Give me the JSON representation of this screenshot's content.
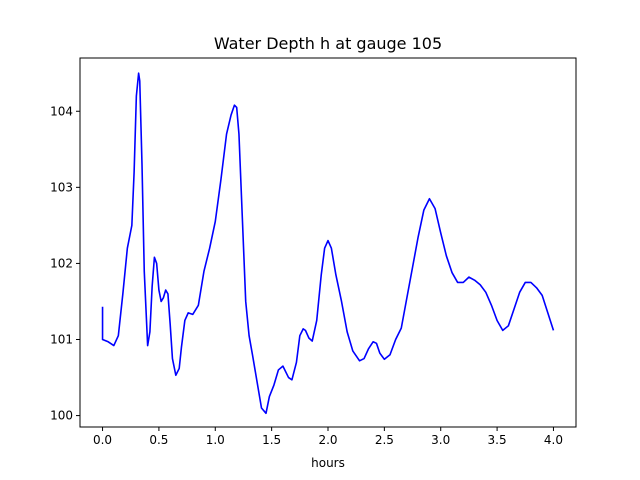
{
  "chart_data": {
    "type": "line",
    "title": "Water Depth h at gauge 105",
    "xlabel": "hours",
    "ylabel": "",
    "xlim": [
      -0.2,
      4.2
    ],
    "ylim": [
      99.85,
      104.7
    ],
    "xticks": [
      0.0,
      0.5,
      1.0,
      1.5,
      2.0,
      2.5,
      3.0,
      3.5,
      4.0
    ],
    "xtick_labels": [
      "0.0",
      "0.5",
      "1.0",
      "1.5",
      "2.0",
      "2.5",
      "3.0",
      "3.5",
      "4.0"
    ],
    "yticks": [
      100,
      101,
      102,
      103,
      104
    ],
    "ytick_labels": [
      "100",
      "101",
      "102",
      "103",
      "104"
    ],
    "grid": false,
    "series": [
      {
        "color": "#0000ff",
        "x": [
          0.0,
          0.0,
          0.05,
          0.1,
          0.14,
          0.18,
          0.22,
          0.26,
          0.28,
          0.3,
          0.32,
          0.33,
          0.35,
          0.37,
          0.4,
          0.42,
          0.44,
          0.46,
          0.48,
          0.5,
          0.52,
          0.54,
          0.56,
          0.58,
          0.6,
          0.62,
          0.65,
          0.68,
          0.7,
          0.73,
          0.76,
          0.8,
          0.85,
          0.9,
          0.95,
          1.0,
          1.05,
          1.1,
          1.14,
          1.17,
          1.19,
          1.21,
          1.24,
          1.27,
          1.3,
          1.33,
          1.37,
          1.41,
          1.45,
          1.48,
          1.52,
          1.56,
          1.6,
          1.65,
          1.68,
          1.72,
          1.75,
          1.78,
          1.8,
          1.83,
          1.86,
          1.9,
          1.94,
          1.97,
          2.0,
          2.03,
          2.07,
          2.12,
          2.17,
          2.22,
          2.28,
          2.32,
          2.36,
          2.4,
          2.43,
          2.46,
          2.5,
          2.55,
          2.6,
          2.65,
          2.7,
          2.75,
          2.8,
          2.85,
          2.9,
          2.95,
          3.0,
          3.05,
          3.1,
          3.15,
          3.2,
          3.25,
          3.3,
          3.35,
          3.4,
          3.45,
          3.5,
          3.55,
          3.6,
          3.65,
          3.7,
          3.75,
          3.8,
          3.85,
          3.9,
          3.95,
          4.0
        ],
        "y": [
          101.43,
          101.0,
          100.97,
          100.92,
          101.05,
          101.6,
          102.2,
          102.5,
          103.2,
          104.2,
          104.5,
          104.4,
          103.3,
          101.9,
          100.92,
          101.1,
          101.7,
          102.08,
          102.0,
          101.65,
          101.5,
          101.55,
          101.65,
          101.6,
          101.2,
          100.75,
          100.53,
          100.62,
          100.9,
          101.25,
          101.35,
          101.33,
          101.45,
          101.9,
          102.2,
          102.55,
          103.1,
          103.7,
          103.95,
          104.08,
          104.05,
          103.7,
          102.6,
          101.5,
          101.05,
          100.8,
          100.45,
          100.1,
          100.03,
          100.25,
          100.4,
          100.6,
          100.65,
          100.5,
          100.47,
          100.7,
          101.05,
          101.14,
          101.12,
          101.02,
          100.98,
          101.25,
          101.85,
          102.2,
          102.3,
          102.2,
          101.85,
          101.5,
          101.1,
          100.85,
          100.72,
          100.75,
          100.88,
          100.97,
          100.95,
          100.82,
          100.74,
          100.8,
          101.0,
          101.15,
          101.55,
          101.95,
          102.35,
          102.7,
          102.85,
          102.72,
          102.4,
          102.1,
          101.88,
          101.75,
          101.75,
          101.82,
          101.78,
          101.72,
          101.62,
          101.45,
          101.25,
          101.12,
          101.18,
          101.4,
          101.62,
          101.75,
          101.75,
          101.68,
          101.58,
          101.35,
          101.12
        ]
      }
    ]
  }
}
